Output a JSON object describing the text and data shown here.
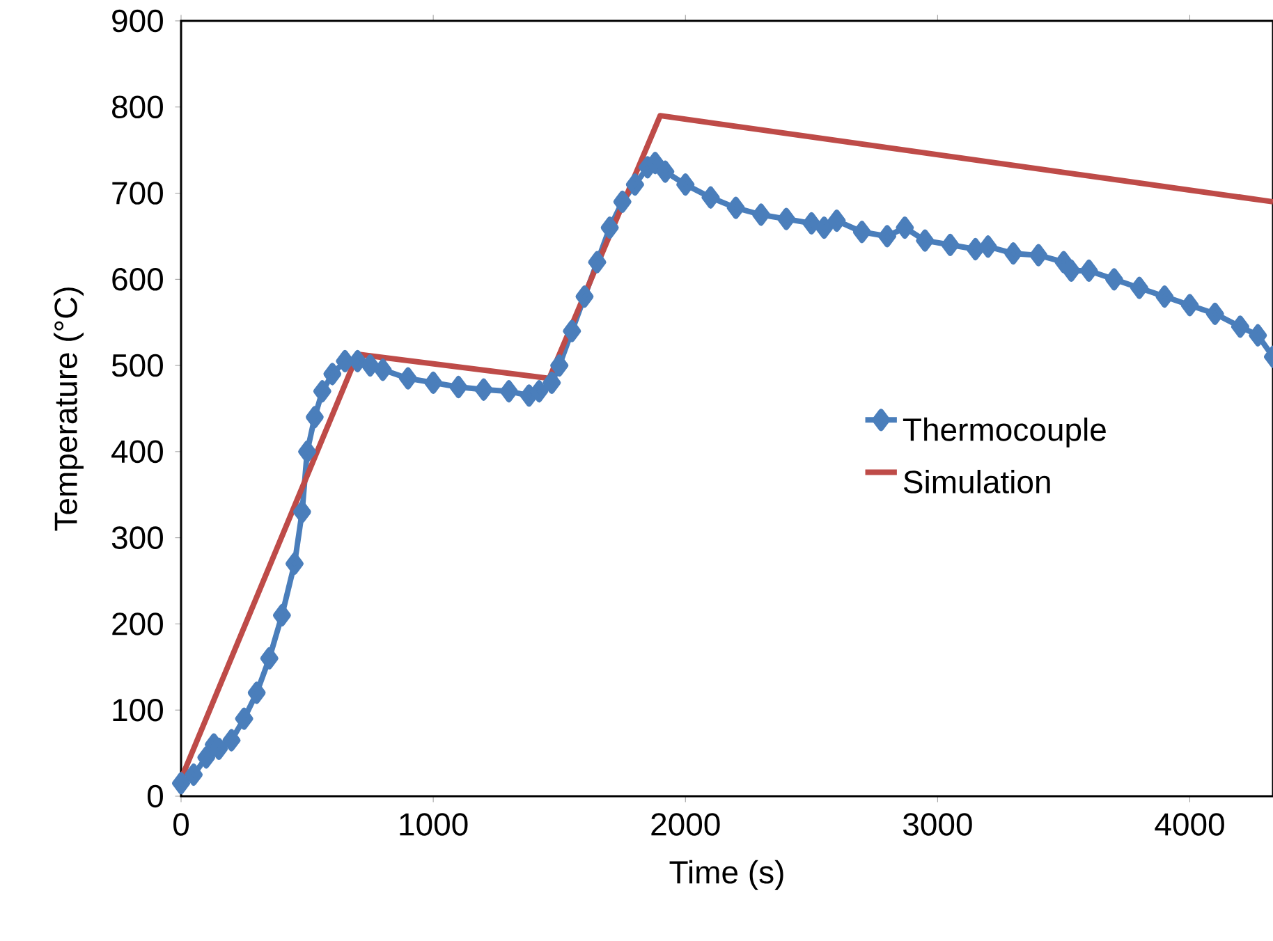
{
  "chart_data": {
    "type": "line",
    "xlabel": "Time (s)",
    "ylabel": "Temperature (°C)",
    "xlim": [
      0,
      4330
    ],
    "ylim": [
      0,
      900
    ],
    "xticks": [
      0,
      1000,
      2000,
      3000,
      4000
    ],
    "yticks": [
      0,
      100,
      200,
      300,
      400,
      500,
      600,
      700,
      800,
      900
    ],
    "grid": false,
    "legend": "right",
    "series": [
      {
        "name": "Thermocouple",
        "color": "#4a7ebb",
        "marker": "diamond",
        "x": [
          0,
          50,
          100,
          130,
          150,
          200,
          250,
          300,
          350,
          400,
          450,
          480,
          500,
          530,
          560,
          600,
          650,
          700,
          750,
          800,
          900,
          1000,
          1100,
          1200,
          1300,
          1380,
          1420,
          1470,
          1500,
          1550,
          1600,
          1650,
          1700,
          1750,
          1800,
          1850,
          1880,
          1920,
          2000,
          2100,
          2200,
          2300,
          2400,
          2500,
          2550,
          2600,
          2700,
          2800,
          2870,
          2950,
          3050,
          3150,
          3200,
          3300,
          3400,
          3500,
          3530,
          3600,
          3700,
          3800,
          3900,
          4000,
          4100,
          4200,
          4270,
          4330
        ],
        "values": [
          15,
          25,
          45,
          60,
          55,
          65,
          90,
          120,
          160,
          210,
          270,
          330,
          400,
          440,
          470,
          490,
          505,
          505,
          500,
          495,
          485,
          480,
          475,
          472,
          470,
          465,
          470,
          480,
          500,
          540,
          580,
          620,
          660,
          690,
          710,
          730,
          735,
          725,
          710,
          695,
          683,
          675,
          670,
          665,
          660,
          668,
          655,
          650,
          660,
          645,
          640,
          635,
          638,
          630,
          628,
          620,
          610,
          610,
          600,
          590,
          580,
          570,
          560,
          545,
          535,
          510
        ]
      },
      {
        "name": "Simulation",
        "color": "#be4b48",
        "marker": "none",
        "x": [
          0,
          700,
          1460,
          1900,
          4330
        ],
        "values": [
          20,
          513,
          485,
          790,
          690
        ]
      }
    ]
  }
}
